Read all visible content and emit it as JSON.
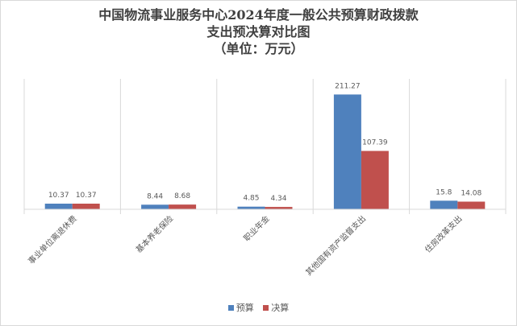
{
  "chart_data": {
    "type": "bar",
    "title_lines": [
      "中国物流事业服务中心2024年度一般公共预算财政拨款",
      "支出预决算对比图",
      "（单位：万元）"
    ],
    "categories": [
      "事业单位离退休费",
      "基本养老保险",
      "职业年金",
      "其他国有资产监督支出",
      "住房改革支出"
    ],
    "series": [
      {
        "name": "预算",
        "values": [
          10.37,
          8.44,
          4.85,
          211.27,
          15.8
        ],
        "labels": [
          "10.37",
          "8.44",
          "4.85",
          "211.27",
          "15.8"
        ],
        "color": "#4f81bd"
      },
      {
        "name": "决算",
        "values": [
          10.37,
          8.68,
          4.34,
          107.39,
          14.08
        ],
        "labels": [
          "10.37",
          "8.68",
          "4.34",
          "107.39",
          "14.08"
        ],
        "color": "#c0504d"
      }
    ],
    "ylim": [
      0,
      240
    ],
    "legend_position": "bottom",
    "grid": false
  }
}
